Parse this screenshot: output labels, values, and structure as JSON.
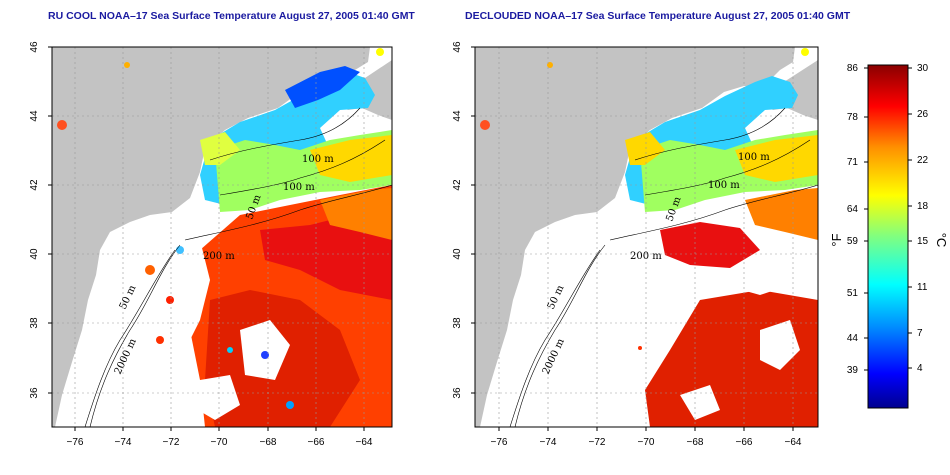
{
  "panels": [
    {
      "id": "left",
      "title": "RU COOL NOAA–17 Sea Surface Temperature August 27, 2005 01:40 GMT",
      "contour_labels": [
        "100 m",
        "100 m",
        "50 m",
        "200 m",
        "50 m",
        "2000 m"
      ]
    },
    {
      "id": "right",
      "title": "DECLOUDED NOAA–17 Sea Surface Temperature August 27, 2005 01:40 GMT",
      "contour_labels": [
        "100 m",
        "100 m",
        "50 m",
        "200 m",
        "50 m",
        "2000 m"
      ]
    }
  ],
  "axes": {
    "lon_ticks": [
      "−76",
      "−74",
      "−72",
      "−70",
      "−68",
      "−66",
      "−64"
    ],
    "lat_ticks": [
      "36",
      "38",
      "40",
      "42",
      "44",
      "46"
    ],
    "lon_range": [
      -77,
      -63
    ],
    "lat_range": [
      35,
      46
    ]
  },
  "colorbar": {
    "fahrenheit_ticks": [
      "86",
      "78",
      "71",
      "64",
      "59",
      "51",
      "44",
      "39"
    ],
    "celsius_ticks": [
      "30",
      "26",
      "22",
      "18",
      "15",
      "11",
      "7",
      "4"
    ],
    "fahrenheit_unit": "°F",
    "celsius_unit": "°C",
    "colors": [
      "#00008f",
      "#0000ff",
      "#0080ff",
      "#00ffff",
      "#80ff80",
      "#ffff00",
      "#ff8000",
      "#ff0000",
      "#800000"
    ]
  },
  "colors": {
    "land": "#c3c3c3",
    "cloud": "#ffffff",
    "title": "#1a1aa0"
  }
}
